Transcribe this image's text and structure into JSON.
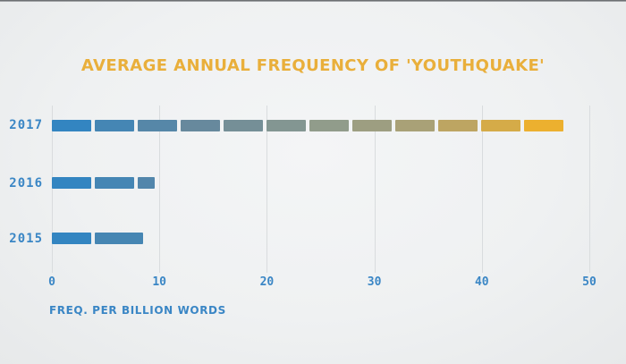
{
  "chart_data": {
    "type": "bar",
    "orientation": "horizontal",
    "bar_style": "dashed",
    "title": "AVERAGE ANNUAL FREQUENCY OF 'YOUTHQUAKE'",
    "categories": [
      "2017",
      "2016",
      "2015"
    ],
    "values": [
      47.6,
      9.6,
      8.5
    ],
    "xlabel": "FREQ. PER BILLION WORDS",
    "xlim": [
      0,
      50
    ],
    "xticks": [
      "0",
      "10",
      "20",
      "30",
      "40",
      "50"
    ],
    "grid": "vertical",
    "legend": "none",
    "gradient_stops": [
      {
        "f": 0.0,
        "color": "#2b85c7"
      },
      {
        "f": 0.25,
        "color": "#62879f"
      },
      {
        "f": 0.5,
        "color": "#8f9b8d"
      },
      {
        "f": 0.7,
        "color": "#ada274"
      },
      {
        "f": 0.92,
        "color": "#eeb02d"
      },
      {
        "f": 1.0,
        "color": "#f3b32a"
      }
    ],
    "colors": {
      "label_blue": "#3a86c5",
      "title_yellow": "#e9af3b",
      "gridline": "#d9dcde",
      "background": "#eef0f1",
      "bar_start": "#2e86c5",
      "bar_end": "#eeb02e"
    }
  }
}
